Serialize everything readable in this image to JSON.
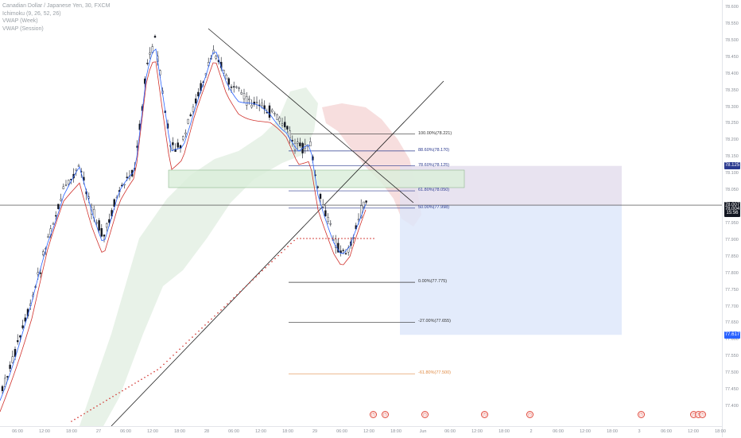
{
  "legend": {
    "symbol": "Canadian Dollar / Japanese Yen, 30, FXCM",
    "ichimoku": "Ichimoku (9, 26, 52, 26)",
    "vwap_week": "VWAP (Week)",
    "vwap_session": "VWAP (Session)"
  },
  "price_axis": {
    "ticks": [
      "78.600",
      "78.550",
      "78.500",
      "78.450",
      "78.400",
      "78.350",
      "78.300",
      "78.250",
      "78.200",
      "78.150",
      "78.100",
      "78.050",
      "78.000",
      "77.950",
      "77.900",
      "77.850",
      "77.800",
      "77.750",
      "77.700",
      "77.650",
      "77.600",
      "77.550",
      "77.500",
      "77.450",
      "77.400"
    ],
    "badges": [
      {
        "label": "78.125",
        "color": "#2b3a8f",
        "price": 78.125
      },
      {
        "label": "78.007",
        "color": "#131722",
        "price": 78.007
      },
      {
        "label": "78.004",
        "color": "#131722",
        "price": 77.995
      },
      {
        "label": "15:56",
        "color": "#131722",
        "price": 77.983
      },
      {
        "label": "77.617",
        "color": "#2962ff",
        "price": 77.617
      }
    ]
  },
  "time_axis": {
    "labels": [
      "06:00",
      "12:00",
      "18:00",
      "27",
      "06:00",
      "12:00",
      "18:00",
      "28",
      "06:00",
      "12:00",
      "18:00",
      "29",
      "06:00",
      "12:00",
      "18:00",
      "Jun",
      "06:00",
      "12:00",
      "18:00",
      "2",
      "06:00",
      "12:00",
      "18:00",
      "3",
      "06:00",
      "12:00",
      "18:00"
    ]
  },
  "fibonacci": [
    {
      "label": "100.00%(78.221)",
      "price": 78.221,
      "color": "#333333"
    },
    {
      "label": "88.60%(78.170)",
      "price": 78.17,
      "color": "#2b3a8f"
    },
    {
      "label": "78.60%(78.125)",
      "price": 78.125,
      "color": "#2b3a8f"
    },
    {
      "label": "61.80%(78.050)",
      "price": 78.05,
      "color": "#2b3a8f"
    },
    {
      "label": "50.00%(77.998)",
      "price": 77.998,
      "color": "#2b3a8f"
    },
    {
      "label": "0.00%(77.775)",
      "price": 77.775,
      "color": "#333333"
    },
    {
      "label": "-27.00%(77.655)",
      "price": 77.655,
      "color": "#333333"
    },
    {
      "label": "-61.80%(77.500)",
      "price": 77.5,
      "color": "#e08b45"
    }
  ],
  "position": {
    "entry": 78.007,
    "target": 77.617,
    "stop": 78.125
  },
  "events": [
    "(!)",
    "(!)",
    "(!)",
    "(!)",
    "(!)",
    "(!)",
    "(!)",
    "(!)",
    "(!)"
  ],
  "colors": {
    "up": "#131722",
    "down": "#131722",
    "ma_red": "#d0302b",
    "vwap_blue": "#2962ff",
    "cloud_green": "#d8ead8",
    "cloud_red": "#f5d6d6",
    "profit": "#dce6fa",
    "loss": "#e6e0ee"
  }
}
